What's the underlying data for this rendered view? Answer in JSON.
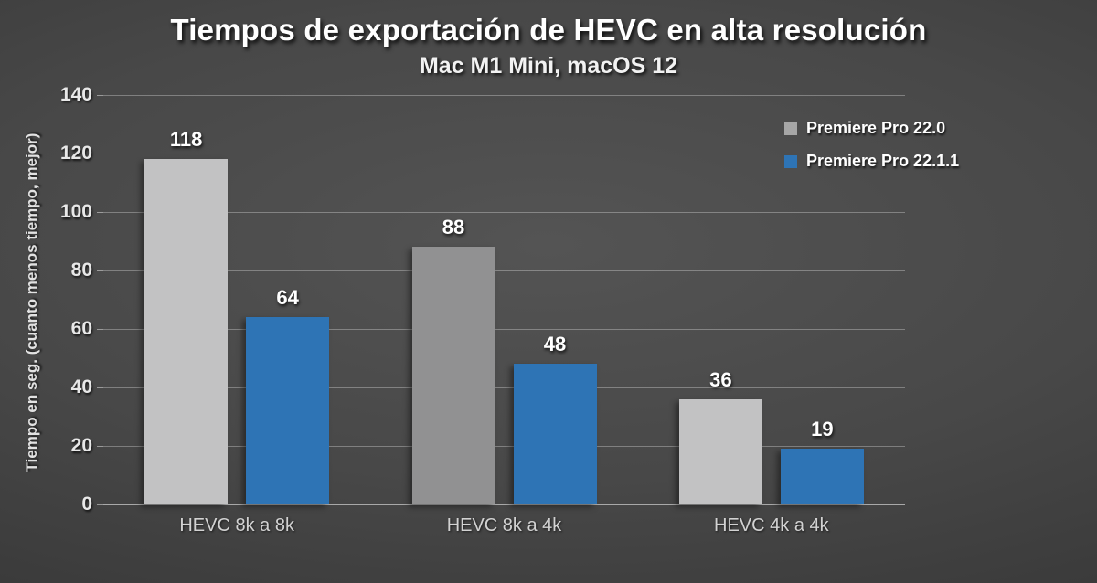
{
  "chart_data": {
    "type": "bar",
    "title": "Tiempos de exportación de HEVC en alta resolución",
    "subtitle": "Mac M1 Mini, macOS 12",
    "categories": [
      "HEVC 8k a 8k",
      "HEVC 8k a 4k",
      "HEVC 4k a 4k"
    ],
    "series": [
      {
        "name": "Premiere Pro 22.0",
        "values": [
          118,
          88,
          36
        ],
        "colors": [
          "#c2c2c3",
          "#919192",
          "#c2c2c3"
        ],
        "legend_color": "#a6a6a6"
      },
      {
        "name": "Premiere Pro 22.1.1",
        "values": [
          64,
          48,
          19
        ],
        "colors": [
          "#2e74b5",
          "#2e74b5",
          "#2e74b5"
        ],
        "legend_color": "#2e74b5"
      }
    ],
    "xlabel": "",
    "ylabel": "Tiempo en seg. (cuanto menos tiempo, mejor)",
    "ylim": [
      0,
      140
    ],
    "ytick_step": 20,
    "yticks": [
      0,
      20,
      40,
      60,
      80,
      100,
      120,
      140
    ],
    "grid": true,
    "data_labels": true,
    "legend_position": "top-right"
  },
  "colors": {
    "background_center": "#545454",
    "background_edge": "#262626",
    "gridline": "rgba(255,255,255,0.30)",
    "axis_line": "#a9a9a9",
    "text": "#ffffff"
  }
}
